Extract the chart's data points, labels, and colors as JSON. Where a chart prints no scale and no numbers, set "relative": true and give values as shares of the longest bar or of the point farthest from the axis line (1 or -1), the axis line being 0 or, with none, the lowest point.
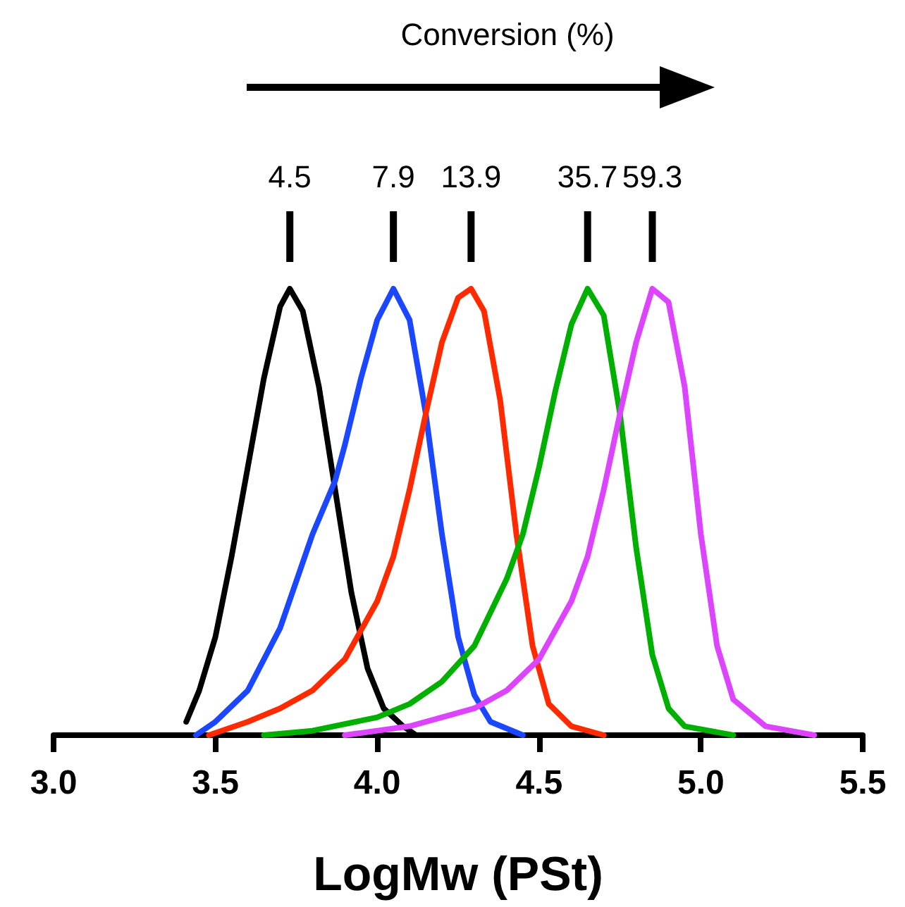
{
  "chart_data": {
    "type": "line",
    "xlabel": "LogMw (PSt)",
    "relative": true,
    "grid": false,
    "marker": "none",
    "line_style": "solid",
    "xlim": [
      3.0,
      5.5
    ],
    "xticks": [
      {
        "value": 3,
        "label": "3.0"
      },
      {
        "value": 3.5,
        "label": "3.5"
      },
      {
        "value": 4,
        "label": "4.0"
      },
      {
        "value": 4.5,
        "label": "4.5"
      },
      {
        "value": 5,
        "label": "5.0"
      },
      {
        "value": 5.5,
        "label": "5.5"
      }
    ],
    "annotations": [
      "Conversion (%)",
      "4.5",
      "7.9",
      "13.9",
      "35.7",
      "59.3"
    ],
    "series": [
      {
        "color": "#000000",
        "x": [
          3.41,
          3.45,
          3.5,
          3.55,
          3.6,
          3.65,
          3.7,
          3.73,
          3.77,
          3.82,
          3.87,
          3.92,
          3.97,
          4.02,
          4.08,
          4.12
        ],
        "values": [
          0.03,
          0.1,
          0.22,
          0.4,
          0.6,
          0.8,
          0.96,
          1,
          0.95,
          0.78,
          0.55,
          0.32,
          0.15,
          0.06,
          0.02,
          0
        ]
      },
      {
        "color": "#1a47ff",
        "x": [
          3.44,
          3.5,
          3.6,
          3.7,
          3.8,
          3.87,
          3.9,
          3.95,
          4.0,
          4.05,
          4.1,
          4.15,
          4.2,
          4.25,
          4.3,
          4.35,
          4.45
        ],
        "values": [
          0,
          0.03,
          0.1,
          0.24,
          0.45,
          0.57,
          0.65,
          0.8,
          0.93,
          1,
          0.93,
          0.72,
          0.45,
          0.22,
          0.09,
          0.03,
          0
        ]
      },
      {
        "color": "#ff2a00",
        "x": [
          3.48,
          3.6,
          3.7,
          3.8,
          3.9,
          4.0,
          4.05,
          4.1,
          4.15,
          4.2,
          4.25,
          4.29,
          4.33,
          4.38,
          4.43,
          4.48,
          4.53,
          4.6,
          4.7
        ],
        "values": [
          0,
          0.03,
          0.06,
          0.1,
          0.17,
          0.3,
          0.4,
          0.55,
          0.72,
          0.88,
          0.98,
          1,
          0.95,
          0.75,
          0.45,
          0.2,
          0.07,
          0.02,
          0
        ]
      },
      {
        "color": "#00b000",
        "x": [
          3.65,
          3.8,
          4.0,
          4.1,
          4.2,
          4.3,
          4.4,
          4.45,
          4.5,
          4.55,
          4.6,
          4.65,
          4.7,
          4.75,
          4.8,
          4.85,
          4.9,
          4.95,
          5.1
        ],
        "values": [
          0,
          0.01,
          0.04,
          0.07,
          0.12,
          0.2,
          0.35,
          0.45,
          0.6,
          0.77,
          0.92,
          1,
          0.94,
          0.72,
          0.42,
          0.18,
          0.06,
          0.02,
          0
        ]
      },
      {
        "color": "#dd44ff",
        "x": [
          3.9,
          4.1,
          4.2,
          4.3,
          4.4,
          4.5,
          4.6,
          4.65,
          4.7,
          4.75,
          4.8,
          4.85,
          4.9,
          4.95,
          5.0,
          5.05,
          5.1,
          5.2,
          5.35
        ],
        "values": [
          0,
          0.02,
          0.04,
          0.06,
          0.1,
          0.17,
          0.3,
          0.4,
          0.55,
          0.72,
          0.88,
          1,
          0.97,
          0.78,
          0.45,
          0.2,
          0.08,
          0.02,
          0
        ]
      }
    ]
  }
}
